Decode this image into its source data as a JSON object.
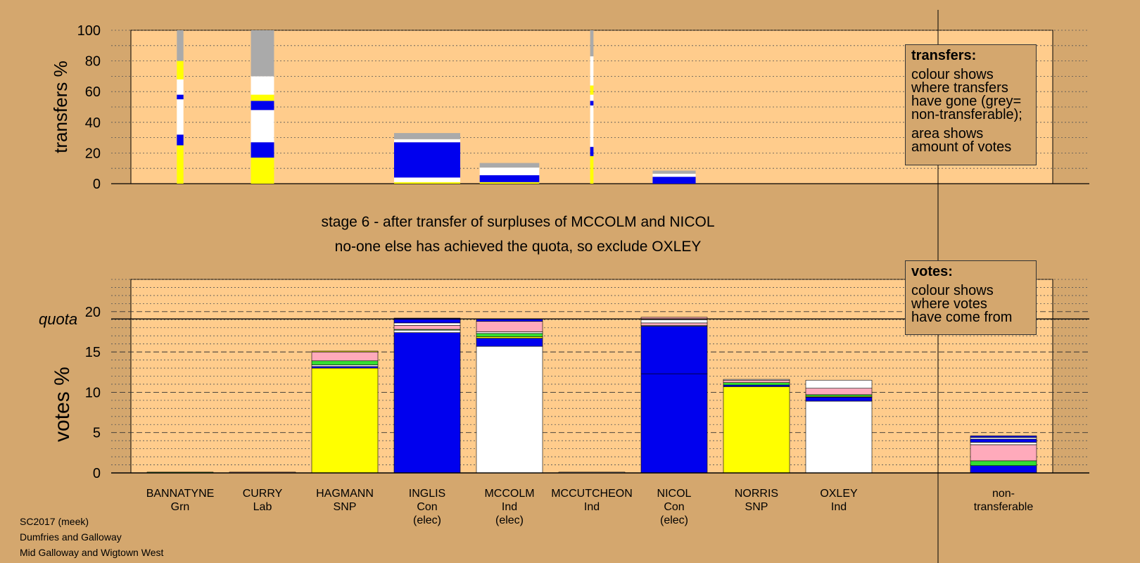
{
  "stage_title": "stage 6 - after transfer of surpluses of MCCOLM and NICOL",
  "stage_subtitle": "no-one else has achieved the quota, so exclude OXLEY",
  "transfers_legend": {
    "title": "transfers:",
    "lines1": [
      "colour shows",
      "where transfers",
      "have gone (grey=",
      "non-transferable);"
    ],
    "lines2": [
      "area shows",
      "amount of votes"
    ]
  },
  "votes_legend": {
    "title": "votes:",
    "lines": [
      "colour shows",
      "where votes",
      "have come from"
    ]
  },
  "footer": [
    "SC2017 (meek)",
    "Dumfries and Galloway",
    "Mid Galloway and Wigtown West"
  ],
  "colors": {
    "background": "#d4a76e",
    "plot_bg": "#ffcc8c",
    "SNP": "#ffff00",
    "Con": "#0000ee",
    "Ind": "#ffffff",
    "Grn": "#33dd33",
    "Lab": "#ffaabb",
    "nontransferable": "#aaaaaa"
  },
  "chart_data": [
    {
      "type": "bar",
      "name": "transfers",
      "ylabel": "transfers %",
      "ylim": [
        0,
        100
      ],
      "yticks": [
        0,
        20,
        40,
        60,
        80,
        100
      ],
      "grid": "dotted",
      "columns": [
        {
          "index": 0,
          "width": 0.1,
          "segments": [
            [
              "SNP",
              25
            ],
            [
              "Con",
              7
            ],
            [
              "Ind",
              23
            ],
            [
              "Con",
              3
            ],
            [
              "Ind",
              10
            ],
            [
              "SNP",
              12
            ],
            [
              "Ind",
              0
            ],
            [
              "nontransferable",
              20
            ]
          ]
        },
        {
          "index": 1,
          "width": 0.35,
          "segments": [
            [
              "SNP",
              17
            ],
            [
              "Con",
              10
            ],
            [
              "Ind",
              21
            ],
            [
              "Con",
              6
            ],
            [
              "SNP",
              4
            ],
            [
              "Ind",
              12
            ],
            [
              "nontransferable",
              30
            ]
          ]
        },
        {
          "index": 3,
          "width": 1.0,
          "segments": [
            [
              "SNP",
              1
            ],
            [
              "Ind",
              3
            ],
            [
              "Con",
              23
            ],
            [
              "Ind",
              2
            ],
            [
              "nontransferable",
              4
            ]
          ]
        },
        {
          "index": 4,
          "width": 0.9,
          "segments": [
            [
              "SNP",
              1
            ],
            [
              "Con",
              4.5
            ],
            [
              "Ind",
              5
            ],
            [
              "nontransferable",
              3
            ]
          ]
        },
        {
          "index": 5,
          "width": 0.05,
          "segments": [
            [
              "SNP",
              18
            ],
            [
              "Con",
              6
            ],
            [
              "Ind",
              27
            ],
            [
              "Con",
              3
            ],
            [
              "Ind",
              4
            ],
            [
              "SNP",
              6
            ],
            [
              "Ind",
              19
            ],
            [
              "nontransferable",
              17
            ]
          ]
        },
        {
          "index": 6,
          "width": 0.65,
          "segments": [
            [
              "Con",
              4.5
            ],
            [
              "Ind",
              2
            ],
            [
              "nontransferable",
              2
            ]
          ]
        }
      ]
    },
    {
      "type": "bar",
      "name": "votes",
      "ylabel": "votes %",
      "ylim": [
        0,
        24
      ],
      "yticks": [
        0,
        5,
        10,
        15,
        20
      ],
      "quota": 19.1,
      "quota_label": "quota",
      "categories": [
        {
          "name": "BANNATYNE",
          "party": "Grn",
          "note": ""
        },
        {
          "name": "CURRY",
          "party": "Lab",
          "note": ""
        },
        {
          "name": "HAGMANN",
          "party": "SNP",
          "note": ""
        },
        {
          "name": "INGLIS",
          "party": "Con",
          "note": "(elec)"
        },
        {
          "name": "MCCOLM",
          "party": "Ind",
          "note": "(elec)"
        },
        {
          "name": "MCCUTCHEON",
          "party": "Ind",
          "note": ""
        },
        {
          "name": "NICOL",
          "party": "Con",
          "note": "(elec)"
        },
        {
          "name": "NORRIS",
          "party": "SNP",
          "note": ""
        },
        {
          "name": "OXLEY",
          "party": "Ind",
          "note": ""
        }
      ],
      "nontransferable_label": "non-\ntransferable",
      "stacks": [
        [
          [
            "Grn",
            0.1
          ]
        ],
        [
          [
            "Lab",
            0.1
          ]
        ],
        [
          [
            "SNP",
            13.0
          ],
          [
            "Con",
            0.2
          ],
          [
            "Ind",
            0.2
          ],
          [
            "Grn",
            0.5
          ],
          [
            "Lab",
            1.1
          ],
          [
            "SNP",
            0.1
          ]
        ],
        [
          [
            "Con",
            17.4
          ],
          [
            "Ind",
            0.3
          ],
          [
            "Grn",
            0.1
          ],
          [
            "Lab",
            0.5
          ],
          [
            "Ind",
            0.3
          ],
          [
            "Con",
            0.6
          ]
        ],
        [
          [
            "Ind",
            15.7
          ],
          [
            "Con",
            1.0
          ],
          [
            "SNP",
            0.2
          ],
          [
            "Grn",
            0.4
          ],
          [
            "Ind",
            0.2
          ],
          [
            "Lab",
            1.3
          ],
          [
            "Con",
            0.3
          ]
        ],
        [
          [
            "Ind",
            0.1
          ]
        ],
        [
          [
            "Con",
            12.3
          ],
          [
            "Con",
            5.9
          ],
          [
            "Ind",
            0.1
          ],
          [
            "Lab",
            0.3
          ],
          [
            "Ind",
            0.4
          ],
          [
            "Lab",
            0.3
          ]
        ],
        [
          [
            "SNP",
            10.7
          ],
          [
            "Con",
            0.2
          ],
          [
            "Grn",
            0.3
          ],
          [
            "Lab",
            0.3
          ],
          [
            "Ind",
            0.1
          ]
        ],
        [
          [
            "Ind",
            8.9
          ],
          [
            "Con",
            0.5
          ],
          [
            "SNP",
            0.1
          ],
          [
            "Grn",
            0.2
          ],
          [
            "Lab",
            0.8
          ],
          [
            "Ind",
            1.0
          ]
        ],
        [
          [
            "Con",
            0.9
          ],
          [
            "Grn",
            0.6
          ],
          [
            "Lab",
            2.0
          ],
          [
            "Ind",
            0.3
          ],
          [
            "Con",
            0.4
          ],
          [
            "Ind",
            0.2
          ],
          [
            "Con",
            0.2
          ]
        ]
      ]
    }
  ]
}
